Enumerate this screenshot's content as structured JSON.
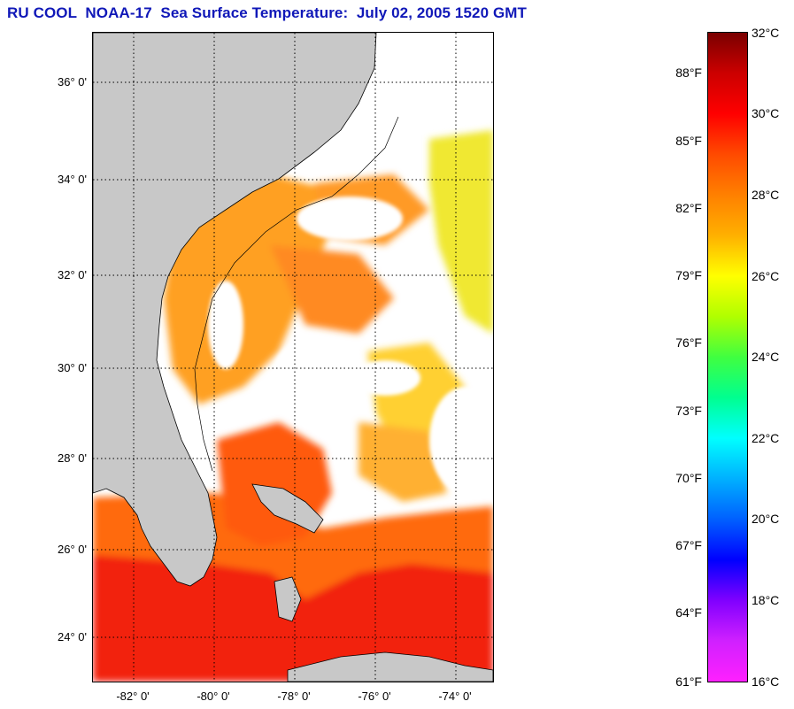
{
  "title": "RU COOL  NOAA-17  Sea Surface Temperature:  July 02, 2005 1520 GMT",
  "map": {
    "lat_labels": [
      "36° 0'",
      "34° 0'",
      "32° 0'",
      "30° 0'",
      "28° 0'",
      "26° 0'",
      "24° 0'"
    ],
    "lon_labels": [
      "-82° 0'",
      "-80° 0'",
      "-78° 0'",
      "-76° 0'",
      "-74° 0'"
    ],
    "colors": {
      "land": "#c8c8c8",
      "cloud": "#ffffff",
      "coast": "#000000"
    }
  },
  "colorbar": {
    "celsius_labels": [
      "32°C",
      "30°C",
      "28°C",
      "26°C",
      "24°C",
      "22°C",
      "20°C",
      "18°C",
      "16°C"
    ],
    "fahrenheit_labels": [
      "88°F",
      "85°F",
      "82°F",
      "79°F",
      "76°F",
      "73°F",
      "70°F",
      "67°F",
      "64°F",
      "61°F"
    ]
  }
}
